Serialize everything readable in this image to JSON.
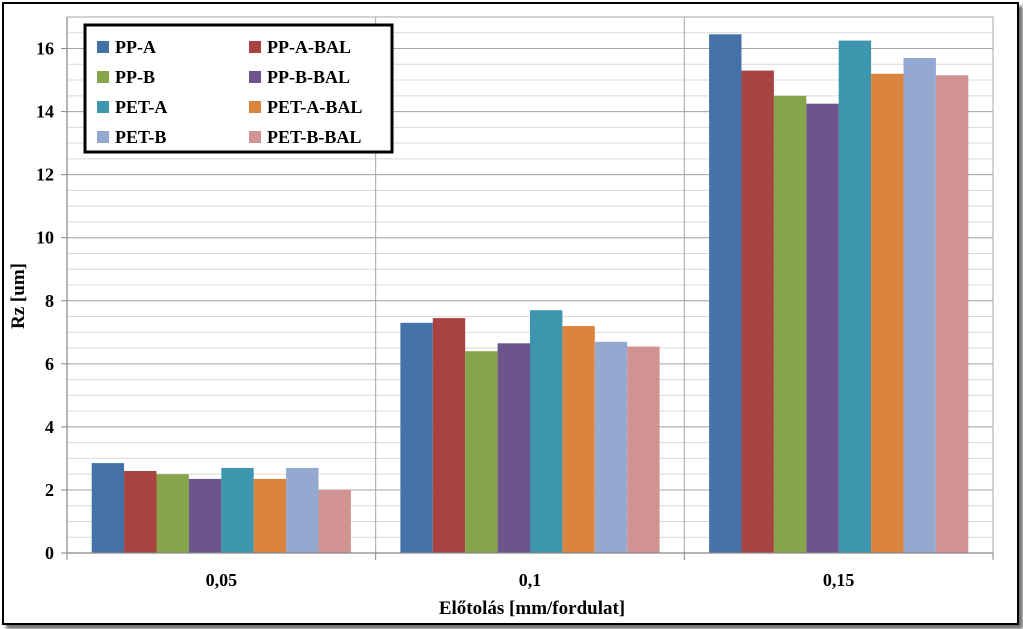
{
  "chart_data": {
    "type": "bar",
    "title": "",
    "xlabel": "Előtolás [mm/fordulat]",
    "ylabel": "Rz [um]",
    "ylim": [
      0,
      17
    ],
    "yticks": [
      0,
      2,
      4,
      6,
      8,
      10,
      12,
      14,
      16
    ],
    "y_minor_step": 0.5,
    "grid": true,
    "legend_position": "top-left",
    "categories": [
      "0,05",
      "0,1",
      "0,15"
    ],
    "series": [
      {
        "name": "PP-A",
        "color": "#4472A8",
        "values": [
          2.85,
          7.3,
          16.45
        ]
      },
      {
        "name": "PP-A-BAL",
        "color": "#A84341",
        "values": [
          2.6,
          7.45,
          15.3
        ]
      },
      {
        "name": "PP-B",
        "color": "#86A44A",
        "values": [
          2.5,
          6.4,
          14.5
        ]
      },
      {
        "name": "PP-B-BAL",
        "color": "#6E548D",
        "values": [
          2.35,
          6.65,
          14.25
        ]
      },
      {
        "name": "PET-A",
        "color": "#3D96AE",
        "values": [
          2.7,
          7.7,
          16.25
        ]
      },
      {
        "name": "PET-A-BAL",
        "color": "#DB843D",
        "values": [
          2.35,
          7.2,
          15.2
        ]
      },
      {
        "name": "PET-B",
        "color": "#93A9CF",
        "values": [
          2.7,
          6.7,
          15.7
        ]
      },
      {
        "name": "PET-B-BAL",
        "color": "#D09392",
        "values": [
          2.0,
          6.55,
          15.15
        ]
      }
    ]
  }
}
